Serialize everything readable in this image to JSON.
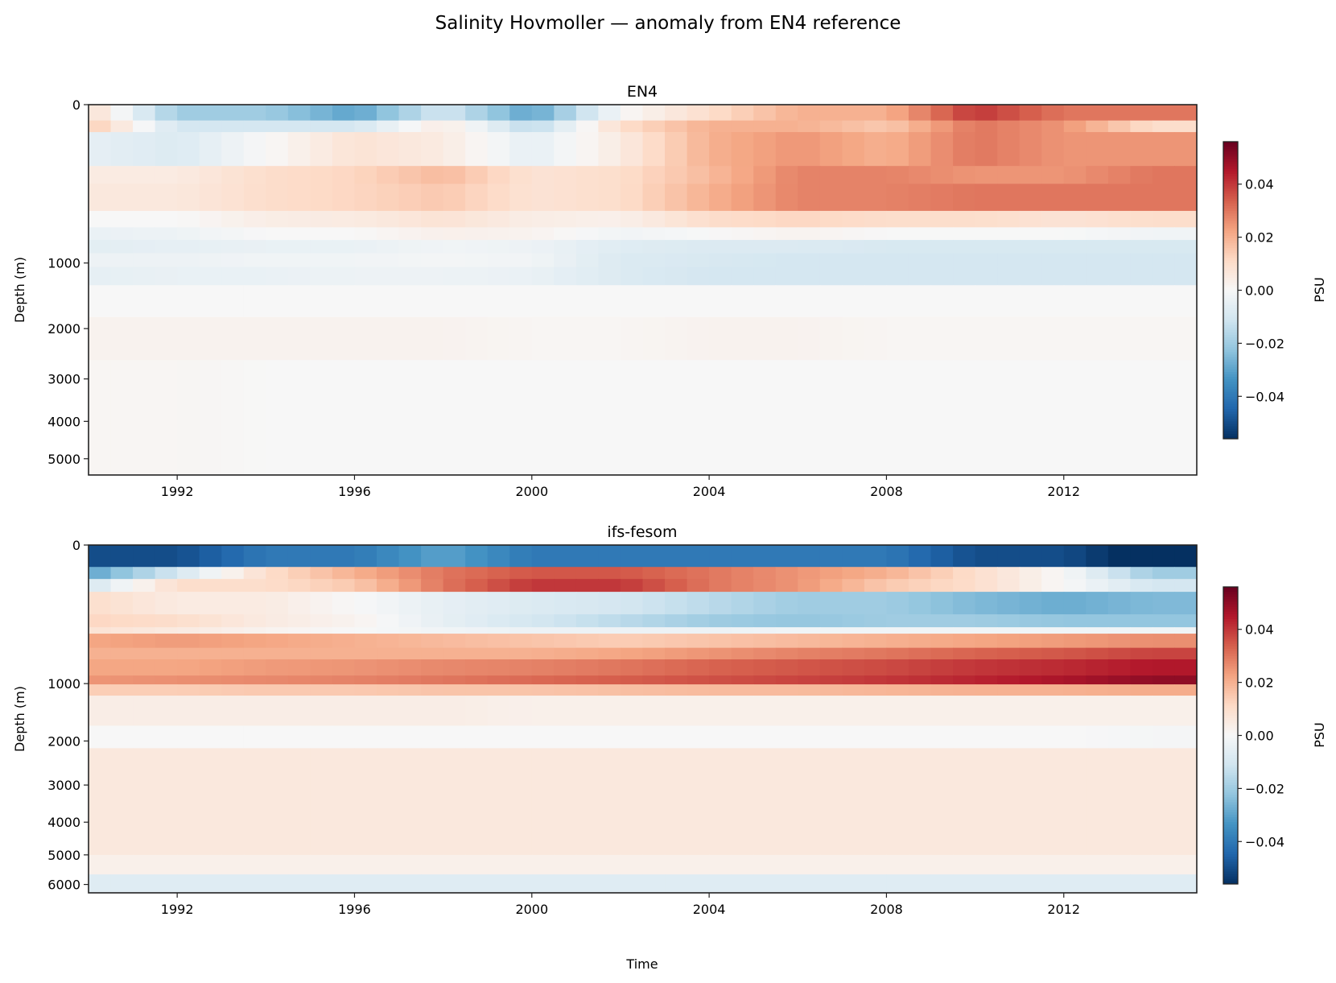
{
  "chart_data": [
    {
      "type": "heatmap",
      "title": "EN4",
      "xlabel": "",
      "ylabel": "Depth (m)",
      "xlim": [
        1990,
        2015
      ],
      "ylim": [
        0,
        5470
      ],
      "y_scale": "sqrt",
      "y_inverted": true,
      "x_ticks": [
        "1992",
        "1996",
        "2000",
        "2004",
        "2008",
        "2012"
      ],
      "y_ticks": [
        "0",
        "1000",
        "2000",
        "3000",
        "4000",
        "5000"
      ],
      "time_points": [
        1990,
        1992,
        1994,
        1996,
        1998,
        2000,
        2002,
        2004,
        2006,
        2008,
        2010,
        2012,
        2014
      ],
      "depth_bands": [
        {
          "top": 0,
          "bottom": 10,
          "values": [
            0.01,
            -0.02,
            -0.02,
            -0.03,
            -0.01,
            -0.03,
            0.0,
            0.01,
            0.02,
            0.02,
            0.04,
            0.03,
            0.03
          ]
        },
        {
          "top": 10,
          "bottom": 30,
          "values": [
            0.015,
            -0.01,
            -0.01,
            -0.01,
            0.005,
            -0.015,
            0.01,
            0.02,
            0.02,
            0.015,
            0.03,
            0.025,
            0.01
          ]
        },
        {
          "top": 30,
          "bottom": 150,
          "values": [
            -0.005,
            -0.008,
            0.0,
            0.008,
            0.005,
            -0.005,
            0.005,
            0.02,
            0.025,
            0.02,
            0.03,
            0.025,
            0.025
          ]
        },
        {
          "top": 150,
          "bottom": 250,
          "values": [
            0.005,
            0.005,
            0.01,
            0.012,
            0.018,
            0.008,
            0.01,
            0.018,
            0.028,
            0.028,
            0.025,
            0.025,
            0.03
          ]
        },
        {
          "top": 250,
          "bottom": 450,
          "values": [
            0.006,
            0.006,
            0.01,
            0.012,
            0.015,
            0.008,
            0.01,
            0.02,
            0.028,
            0.028,
            0.03,
            0.03,
            0.03
          ]
        },
        {
          "top": 450,
          "bottom": 600,
          "values": [
            0.0,
            0.0,
            0.004,
            0.005,
            0.008,
            0.004,
            0.003,
            0.01,
            0.012,
            0.01,
            0.01,
            0.008,
            0.01
          ]
        },
        {
          "top": 600,
          "bottom": 730,
          "values": [
            -0.004,
            -0.003,
            0.0,
            0.0,
            0.003,
            0.002,
            -0.002,
            0.0,
            0.002,
            0.0,
            0.0,
            0.0,
            -0.002
          ]
        },
        {
          "top": 730,
          "bottom": 880,
          "values": [
            -0.006,
            -0.005,
            -0.004,
            -0.004,
            -0.002,
            -0.003,
            -0.007,
            -0.008,
            -0.008,
            -0.009,
            -0.009,
            -0.009,
            -0.009
          ]
        },
        {
          "top": 880,
          "bottom": 1050,
          "values": [
            -0.003,
            -0.003,
            -0.002,
            -0.002,
            -0.001,
            -0.002,
            -0.008,
            -0.009,
            -0.01,
            -0.01,
            -0.01,
            -0.01,
            -0.01
          ]
        },
        {
          "top": 1050,
          "bottom": 1300,
          "values": [
            -0.005,
            -0.004,
            -0.004,
            -0.003,
            -0.003,
            -0.004,
            -0.008,
            -0.01,
            -0.01,
            -0.01,
            -0.01,
            -0.01,
            -0.01
          ]
        },
        {
          "top": 1300,
          "bottom": 1800,
          "values": [
            0.0,
            0.0,
            0.0,
            0.0,
            0.0,
            0.0,
            0.0,
            0.0,
            0.0,
            0.0,
            0.0,
            0.0,
            0.0
          ]
        },
        {
          "top": 1800,
          "bottom": 2600,
          "values": [
            0.002,
            0.002,
            0.002,
            0.002,
            0.002,
            0.001,
            0.001,
            0.002,
            0.002,
            0.001,
            0.001,
            0.001,
            0.001
          ]
        },
        {
          "top": 2600,
          "bottom": 5470,
          "values": [
            0.001,
            0.001,
            0.0,
            0.0,
            0.0,
            0.0,
            0.0,
            0.0,
            0.0,
            0.0,
            0.0,
            0.0,
            0.0
          ]
        }
      ],
      "colorbar": {
        "label": "PSU",
        "vmin": -0.056,
        "vmax": 0.056,
        "ticks": [
          "0.04",
          "0.02",
          "0.00",
          "−0.02",
          "−0.04"
        ],
        "tick_values": [
          0.04,
          0.02,
          0.0,
          -0.02,
          -0.04
        ],
        "colormap": "RdBu_r"
      }
    },
    {
      "type": "heatmap",
      "title": "ifs-fesom",
      "xlabel": "Time",
      "ylabel": "Depth (m)",
      "xlim": [
        1990,
        2015
      ],
      "ylim": [
        0,
        6300
      ],
      "y_scale": "sqrt",
      "y_inverted": true,
      "x_ticks": [
        "1992",
        "1996",
        "2000",
        "2004",
        "2008",
        "2012"
      ],
      "y_ticks": [
        "0",
        "1000",
        "2000",
        "3000",
        "4000",
        "5000",
        "6000"
      ],
      "time_points": [
        1990,
        1992,
        1994,
        1996,
        1998,
        2000,
        2002,
        2004,
        2006,
        2008,
        2010,
        2012,
        2014
      ],
      "depth_bands": [
        {
          "top": 0,
          "bottom": 25,
          "values": [
            -0.05,
            -0.05,
            -0.04,
            -0.04,
            -0.03,
            -0.04,
            -0.04,
            -0.04,
            -0.04,
            -0.04,
            -0.05,
            -0.05,
            -0.06
          ]
        },
        {
          "top": 25,
          "bottom": 60,
          "values": [
            -0.03,
            -0.01,
            0.01,
            0.02,
            0.03,
            0.035,
            0.035,
            0.03,
            0.025,
            0.02,
            0.01,
            0.0,
            -0.02
          ]
        },
        {
          "top": 60,
          "bottom": 114,
          "values": [
            -0.01,
            0.01,
            0.01,
            0.015,
            0.03,
            0.04,
            0.04,
            0.03,
            0.025,
            0.015,
            0.01,
            0.0,
            -0.01
          ]
        },
        {
          "top": 114,
          "bottom": 250,
          "values": [
            0.01,
            0.005,
            0.005,
            0.0,
            -0.005,
            -0.008,
            -0.01,
            -0.015,
            -0.02,
            -0.02,
            -0.025,
            -0.028,
            -0.025
          ]
        },
        {
          "top": 250,
          "bottom": 352,
          "values": [
            0.012,
            0.01,
            0.005,
            0.002,
            -0.005,
            -0.01,
            -0.015,
            -0.02,
            -0.022,
            -0.02,
            -0.02,
            -0.022,
            -0.022
          ]
        },
        {
          "top": 352,
          "bottom": 409,
          "values": [
            0.008,
            0.005,
            0.002,
            0.0,
            -0.002,
            -0.003,
            -0.003,
            -0.003,
            -0.002,
            -0.002,
            -0.002,
            -0.002,
            -0.002
          ]
        },
        {
          "top": 409,
          "bottom": 550,
          "values": [
            0.022,
            0.024,
            0.022,
            0.02,
            0.018,
            0.016,
            0.014,
            0.016,
            0.018,
            0.02,
            0.022,
            0.024,
            0.026
          ]
        },
        {
          "top": 550,
          "bottom": 681,
          "values": [
            0.02,
            0.02,
            0.02,
            0.02,
            0.02,
            0.02,
            0.022,
            0.025,
            0.028,
            0.03,
            0.033,
            0.035,
            0.038
          ]
        },
        {
          "top": 681,
          "bottom": 887,
          "values": [
            0.022,
            0.022,
            0.024,
            0.025,
            0.027,
            0.028,
            0.03,
            0.033,
            0.035,
            0.037,
            0.04,
            0.042,
            0.045
          ]
        },
        {
          "top": 887,
          "bottom": 1011,
          "values": [
            0.025,
            0.026,
            0.027,
            0.028,
            0.03,
            0.032,
            0.034,
            0.036,
            0.038,
            0.04,
            0.043,
            0.046,
            0.05
          ]
        },
        {
          "top": 1011,
          "bottom": 1181,
          "values": [
            0.014,
            0.014,
            0.015,
            0.015,
            0.016,
            0.016,
            0.017,
            0.018,
            0.018,
            0.019,
            0.02,
            0.02,
            0.021
          ]
        },
        {
          "top": 1181,
          "bottom": 1700,
          "values": [
            0.004,
            0.004,
            0.004,
            0.004,
            0.004,
            0.003,
            0.003,
            0.003,
            0.003,
            0.003,
            0.003,
            0.003,
            0.003
          ]
        },
        {
          "top": 1700,
          "bottom": 2150,
          "values": [
            0.0,
            0.0,
            0.0,
            0.0,
            0.0,
            0.0,
            0.0,
            0.0,
            0.0,
            0.0,
            0.0,
            0.0,
            -0.001
          ]
        },
        {
          "top": 2150,
          "bottom": 5000,
          "values": [
            0.006,
            0.006,
            0.006,
            0.006,
            0.006,
            0.006,
            0.006,
            0.006,
            0.006,
            0.006,
            0.006,
            0.006,
            0.006
          ]
        },
        {
          "top": 5000,
          "bottom": 5650,
          "values": [
            0.003,
            0.003,
            0.003,
            0.003,
            0.003,
            0.003,
            0.003,
            0.003,
            0.003,
            0.003,
            0.003,
            0.003,
            0.003
          ]
        },
        {
          "top": 5650,
          "bottom": 6300,
          "values": [
            -0.007,
            -0.007,
            -0.007,
            -0.007,
            -0.007,
            -0.007,
            -0.007,
            -0.007,
            -0.007,
            -0.007,
            -0.007,
            -0.007,
            -0.007
          ]
        }
      ],
      "colorbar": {
        "label": "PSU",
        "vmin": -0.056,
        "vmax": 0.056,
        "ticks": [
          "0.04",
          "0.02",
          "0.00",
          "−0.02",
          "−0.04"
        ],
        "tick_values": [
          0.04,
          0.02,
          0.0,
          -0.02,
          -0.04
        ],
        "colormap": "RdBu_r"
      }
    }
  ],
  "figure": {
    "suptitle": "Salinity Hovmoller — anomaly from EN4 reference"
  }
}
